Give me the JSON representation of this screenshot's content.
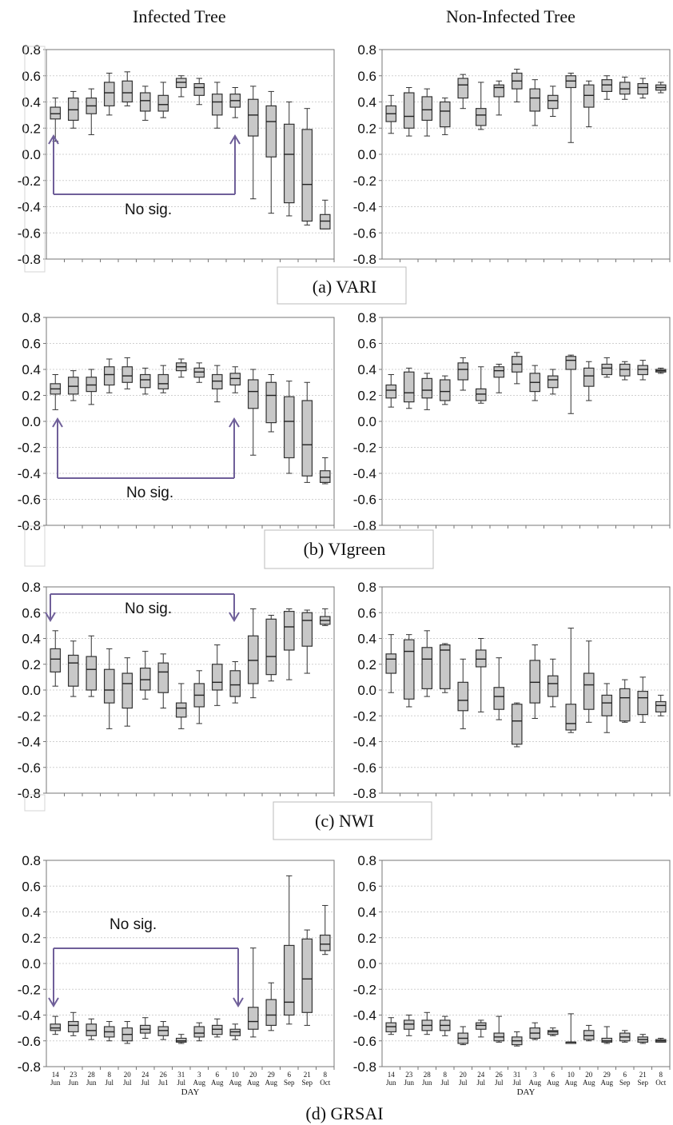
{
  "column_titles": {
    "infected": "Infected Tree",
    "non_infected": "Non-Infected Tree"
  },
  "yticks": [
    "0.8",
    "0.6",
    "0.4",
    "0.2",
    "0.0",
    "-0.2",
    "-0.4",
    "-0.6",
    "-0.8"
  ],
  "date_days": [
    "14",
    "23",
    "28",
    "8",
    "20",
    "24",
    "26",
    "31",
    "3",
    "6",
    "10",
    "20",
    "29",
    "6",
    "21",
    "8"
  ],
  "date_months": [
    "Jun",
    "Jun",
    "Jun",
    "Jul",
    "Jul",
    "Jul",
    "Jul",
    "Jul",
    "Aug",
    "Aug",
    "Aug",
    "Aug",
    "Aug",
    "Sep",
    "Sep",
    "Oct"
  ],
  "date_months_infected": [
    "Jun",
    "Jun",
    "Jun",
    "Jul",
    "Jul",
    "Jul",
    "Ju1",
    "Jul",
    "Aug",
    "Aug",
    "Aug",
    "Aug",
    "Aug",
    "Sep",
    "Sep",
    "Oct"
  ],
  "xlabel": "DAY",
  "annotation": "No sig.",
  "colors": {
    "box_fill": "#c8c8c8",
    "box_edge": "#333333",
    "arrow": "#6f5f99",
    "grid": "#d0d0d0"
  },
  "chart_data": [
    {
      "type": "boxplot",
      "panel": "(a) VARI",
      "label": "(a) VARI",
      "ylim": [
        -0.8,
        0.8
      ],
      "grid": true,
      "infected": [
        [
          0.1,
          0.27,
          0.31,
          0.36,
          0.43
        ],
        [
          0.2,
          0.26,
          0.34,
          0.43,
          0.48
        ],
        [
          0.15,
          0.31,
          0.37,
          0.43,
          0.5
        ],
        [
          0.3,
          0.37,
          0.47,
          0.55,
          0.62
        ],
        [
          0.37,
          0.4,
          0.47,
          0.56,
          0.63
        ],
        [
          0.26,
          0.33,
          0.41,
          0.47,
          0.52
        ],
        [
          0.28,
          0.33,
          0.38,
          0.45,
          0.55
        ],
        [
          0.44,
          0.51,
          0.55,
          0.58,
          0.6
        ],
        [
          0.38,
          0.45,
          0.51,
          0.54,
          0.58
        ],
        [
          0.2,
          0.3,
          0.4,
          0.46,
          0.55
        ],
        [
          0.28,
          0.36,
          0.41,
          0.46,
          0.51
        ],
        [
          -0.34,
          0.14,
          0.3,
          0.42,
          0.52
        ],
        [
          -0.45,
          -0.02,
          0.25,
          0.37,
          0.48
        ],
        [
          -0.47,
          -0.37,
          0.0,
          0.23,
          0.4
        ],
        [
          -0.54,
          -0.51,
          -0.23,
          0.19,
          0.35
        ],
        [
          -0.57,
          -0.57,
          -0.51,
          -0.46,
          -0.35
        ]
      ],
      "non_infected": [
        [
          0.16,
          0.25,
          0.31,
          0.37,
          0.45
        ],
        [
          0.14,
          0.2,
          0.29,
          0.47,
          0.51
        ],
        [
          0.14,
          0.26,
          0.34,
          0.44,
          0.5
        ],
        [
          0.15,
          0.21,
          0.33,
          0.4,
          0.43
        ],
        [
          0.35,
          0.43,
          0.53,
          0.58,
          0.61
        ],
        [
          0.19,
          0.22,
          0.3,
          0.35,
          0.55
        ],
        [
          0.3,
          0.44,
          0.51,
          0.53,
          0.56
        ],
        [
          0.4,
          0.5,
          0.56,
          0.62,
          0.65
        ],
        [
          0.22,
          0.33,
          0.43,
          0.5,
          0.57
        ],
        [
          0.29,
          0.35,
          0.41,
          0.45,
          0.52
        ],
        [
          0.09,
          0.51,
          0.56,
          0.6,
          0.62
        ],
        [
          0.21,
          0.36,
          0.45,
          0.53,
          0.56
        ],
        [
          0.42,
          0.48,
          0.53,
          0.57,
          0.6
        ],
        [
          0.42,
          0.46,
          0.5,
          0.55,
          0.59
        ],
        [
          0.43,
          0.46,
          0.51,
          0.54,
          0.58
        ],
        [
          0.47,
          0.49,
          0.51,
          0.53,
          0.55
        ]
      ]
    },
    {
      "type": "boxplot",
      "panel": "(b) VIgreen",
      "label": "(b) VIgreen",
      "ylim": [
        -0.8,
        0.8
      ],
      "grid": true,
      "infected": [
        [
          0.09,
          0.21,
          0.25,
          0.29,
          0.36
        ],
        [
          0.16,
          0.21,
          0.27,
          0.34,
          0.39
        ],
        [
          0.13,
          0.23,
          0.28,
          0.34,
          0.4
        ],
        [
          0.22,
          0.28,
          0.36,
          0.42,
          0.48
        ],
        [
          0.25,
          0.3,
          0.35,
          0.42,
          0.49
        ],
        [
          0.21,
          0.26,
          0.32,
          0.36,
          0.41
        ],
        [
          0.22,
          0.25,
          0.29,
          0.36,
          0.43
        ],
        [
          0.34,
          0.39,
          0.42,
          0.45,
          0.48
        ],
        [
          0.3,
          0.34,
          0.38,
          0.41,
          0.45
        ],
        [
          0.15,
          0.25,
          0.31,
          0.36,
          0.43
        ],
        [
          0.22,
          0.28,
          0.33,
          0.37,
          0.42
        ],
        [
          -0.26,
          0.1,
          0.23,
          0.32,
          0.4
        ],
        [
          -0.08,
          -0.01,
          0.2,
          0.3,
          0.36
        ],
        [
          -0.4,
          -0.28,
          0.0,
          0.19,
          0.31
        ],
        [
          -0.47,
          -0.42,
          -0.18,
          0.16,
          0.3
        ],
        [
          -0.48,
          -0.47,
          -0.43,
          -0.38,
          -0.28
        ]
      ],
      "non_infected": [
        [
          0.11,
          0.18,
          0.24,
          0.28,
          0.36
        ],
        [
          0.1,
          0.15,
          0.22,
          0.38,
          0.41
        ],
        [
          0.09,
          0.18,
          0.24,
          0.33,
          0.37
        ],
        [
          0.13,
          0.16,
          0.23,
          0.32,
          0.35
        ],
        [
          0.24,
          0.32,
          0.4,
          0.45,
          0.49
        ],
        [
          0.14,
          0.16,
          0.21,
          0.25,
          0.42
        ],
        [
          0.22,
          0.34,
          0.39,
          0.42,
          0.44
        ],
        [
          0.29,
          0.38,
          0.44,
          0.5,
          0.53
        ],
        [
          0.16,
          0.23,
          0.3,
          0.37,
          0.43
        ],
        [
          0.21,
          0.26,
          0.32,
          0.35,
          0.4
        ],
        [
          0.06,
          0.4,
          0.47,
          0.5,
          0.51
        ],
        [
          0.16,
          0.27,
          0.35,
          0.41,
          0.46
        ],
        [
          0.34,
          0.36,
          0.41,
          0.44,
          0.49
        ],
        [
          0.32,
          0.35,
          0.4,
          0.44,
          0.46
        ],
        [
          0.32,
          0.36,
          0.4,
          0.43,
          0.47
        ],
        [
          0.37,
          0.38,
          0.39,
          0.4,
          0.41
        ]
      ]
    },
    {
      "type": "boxplot",
      "panel": "(c) NWI",
      "label": "(c) NWI",
      "ylim": [
        -0.8,
        0.8
      ],
      "grid": true,
      "infected": [
        [
          0.03,
          0.14,
          0.24,
          0.32,
          0.46
        ],
        [
          -0.05,
          0.03,
          0.21,
          0.27,
          0.38
        ],
        [
          -0.05,
          0.0,
          0.16,
          0.26,
          0.42
        ],
        [
          -0.3,
          -0.1,
          0.0,
          0.16,
          0.32
        ],
        [
          -0.28,
          -0.14,
          0.05,
          0.13,
          0.25
        ],
        [
          -0.07,
          0.0,
          0.08,
          0.17,
          0.3
        ],
        [
          -0.14,
          -0.02,
          0.14,
          0.21,
          0.28
        ],
        [
          -0.3,
          -0.21,
          -0.14,
          -0.1,
          0.05
        ],
        [
          -0.26,
          -0.13,
          -0.04,
          0.05,
          0.15
        ],
        [
          -0.12,
          0.0,
          0.06,
          0.2,
          0.35
        ],
        [
          -0.1,
          -0.05,
          0.04,
          0.15,
          0.22
        ],
        [
          -0.06,
          0.05,
          0.23,
          0.42,
          0.63
        ],
        [
          0.07,
          0.12,
          0.26,
          0.55,
          0.58
        ],
        [
          0.08,
          0.31,
          0.49,
          0.61,
          0.63
        ],
        [
          0.13,
          0.34,
          0.54,
          0.6,
          0.62
        ],
        [
          0.5,
          0.51,
          0.54,
          0.57,
          0.63
        ]
      ]
    },
    {
      "type": "boxplot",
      "panel": "(c) NWI",
      "label": "(c) NWI",
      "ylim": [
        -0.8,
        0.8
      ],
      "grid": true,
      "non_infected": [
        [
          -0.02,
          0.13,
          0.24,
          0.28,
          0.43
        ],
        [
          -0.13,
          -0.07,
          0.3,
          0.39,
          0.43
        ],
        [
          -0.05,
          0.01,
          0.24,
          0.33,
          0.46
        ],
        [
          -0.02,
          0.01,
          0.31,
          0.35,
          0.36
        ],
        [
          -0.3,
          -0.16,
          -0.08,
          0.06,
          0.24
        ],
        [
          -0.17,
          0.18,
          0.24,
          0.31,
          0.4
        ],
        [
          -0.23,
          -0.15,
          -0.05,
          0.02,
          0.25
        ],
        [
          -0.44,
          -0.42,
          -0.24,
          -0.11,
          -0.1
        ],
        [
          -0.22,
          -0.1,
          0.06,
          0.23,
          0.35
        ],
        [
          -0.13,
          -0.05,
          0.05,
          0.11,
          0.24
        ],
        [
          -0.33,
          -0.31,
          -0.26,
          -0.11,
          0.48
        ],
        [
          -0.25,
          -0.15,
          0.04,
          0.13,
          0.38
        ],
        [
          -0.33,
          -0.2,
          -0.1,
          -0.04,
          0.05
        ],
        [
          -0.25,
          -0.24,
          -0.06,
          0.01,
          0.08
        ],
        [
          -0.25,
          -0.19,
          -0.06,
          -0.01,
          0.1
        ],
        [
          -0.2,
          -0.17,
          -0.12,
          -0.09,
          -0.04
        ]
      ]
    },
    {
      "type": "boxplot",
      "panel": "(d) GRSAI",
      "label": "(d) GRSAI",
      "ylim": [
        -0.8,
        0.8
      ],
      "grid": true,
      "xlabel": "DAY",
      "infected": [
        [
          -0.55,
          -0.52,
          -0.5,
          -0.47,
          -0.41
        ],
        [
          -0.56,
          -0.53,
          -0.48,
          -0.45,
          -0.38
        ],
        [
          -0.59,
          -0.56,
          -0.52,
          -0.47,
          -0.43
        ],
        [
          -0.6,
          -0.57,
          -0.53,
          -0.49,
          -0.45
        ],
        [
          -0.62,
          -0.6,
          -0.55,
          -0.5,
          -0.45
        ],
        [
          -0.58,
          -0.54,
          -0.51,
          -0.48,
          -0.42
        ],
        [
          -0.59,
          -0.56,
          -0.52,
          -0.49,
          -0.45
        ],
        [
          -0.62,
          -0.61,
          -0.6,
          -0.58,
          -0.55
        ],
        [
          -0.6,
          -0.57,
          -0.54,
          -0.49,
          -0.46
        ],
        [
          -0.57,
          -0.55,
          -0.51,
          -0.48,
          -0.43
        ],
        [
          -0.59,
          -0.56,
          -0.53,
          -0.51,
          -0.47
        ],
        [
          -0.57,
          -0.51,
          -0.45,
          -0.34,
          0.12
        ],
        [
          -0.52,
          -0.48,
          -0.4,
          -0.28,
          -0.15
        ],
        [
          -0.47,
          -0.4,
          -0.3,
          0.14,
          0.68
        ],
        [
          -0.48,
          -0.38,
          -0.12,
          0.19,
          0.26
        ],
        [
          0.07,
          0.1,
          0.15,
          0.22,
          0.45
        ]
      ],
      "non_infected": [
        [
          -0.55,
          -0.53,
          -0.49,
          -0.46,
          -0.42
        ],
        [
          -0.56,
          -0.51,
          -0.47,
          -0.44,
          -0.4
        ],
        [
          -0.55,
          -0.52,
          -0.48,
          -0.44,
          -0.38
        ],
        [
          -0.56,
          -0.52,
          -0.48,
          -0.44,
          -0.41
        ],
        [
          -0.63,
          -0.62,
          -0.58,
          -0.54,
          -0.49
        ],
        [
          -0.57,
          -0.51,
          -0.48,
          -0.46,
          -0.44
        ],
        [
          -0.61,
          -0.6,
          -0.57,
          -0.54,
          -0.41
        ],
        [
          -0.64,
          -0.63,
          -0.6,
          -0.57,
          -0.53
        ],
        [
          -0.59,
          -0.58,
          -0.54,
          -0.5,
          -0.46
        ],
        [
          -0.56,
          -0.55,
          -0.53,
          -0.52,
          -0.5
        ],
        [
          -0.62,
          -0.62,
          -0.61,
          -0.61,
          -0.39
        ],
        [
          -0.6,
          -0.59,
          -0.56,
          -0.52,
          -0.48
        ],
        [
          -0.62,
          -0.61,
          -0.6,
          -0.58,
          -0.49
        ],
        [
          -0.61,
          -0.6,
          -0.57,
          -0.54,
          -0.52
        ],
        [
          -0.62,
          -0.61,
          -0.59,
          -0.57,
          -0.55
        ],
        [
          -0.61,
          -0.61,
          -0.6,
          -0.59,
          -0.58
        ]
      ]
    }
  ]
}
